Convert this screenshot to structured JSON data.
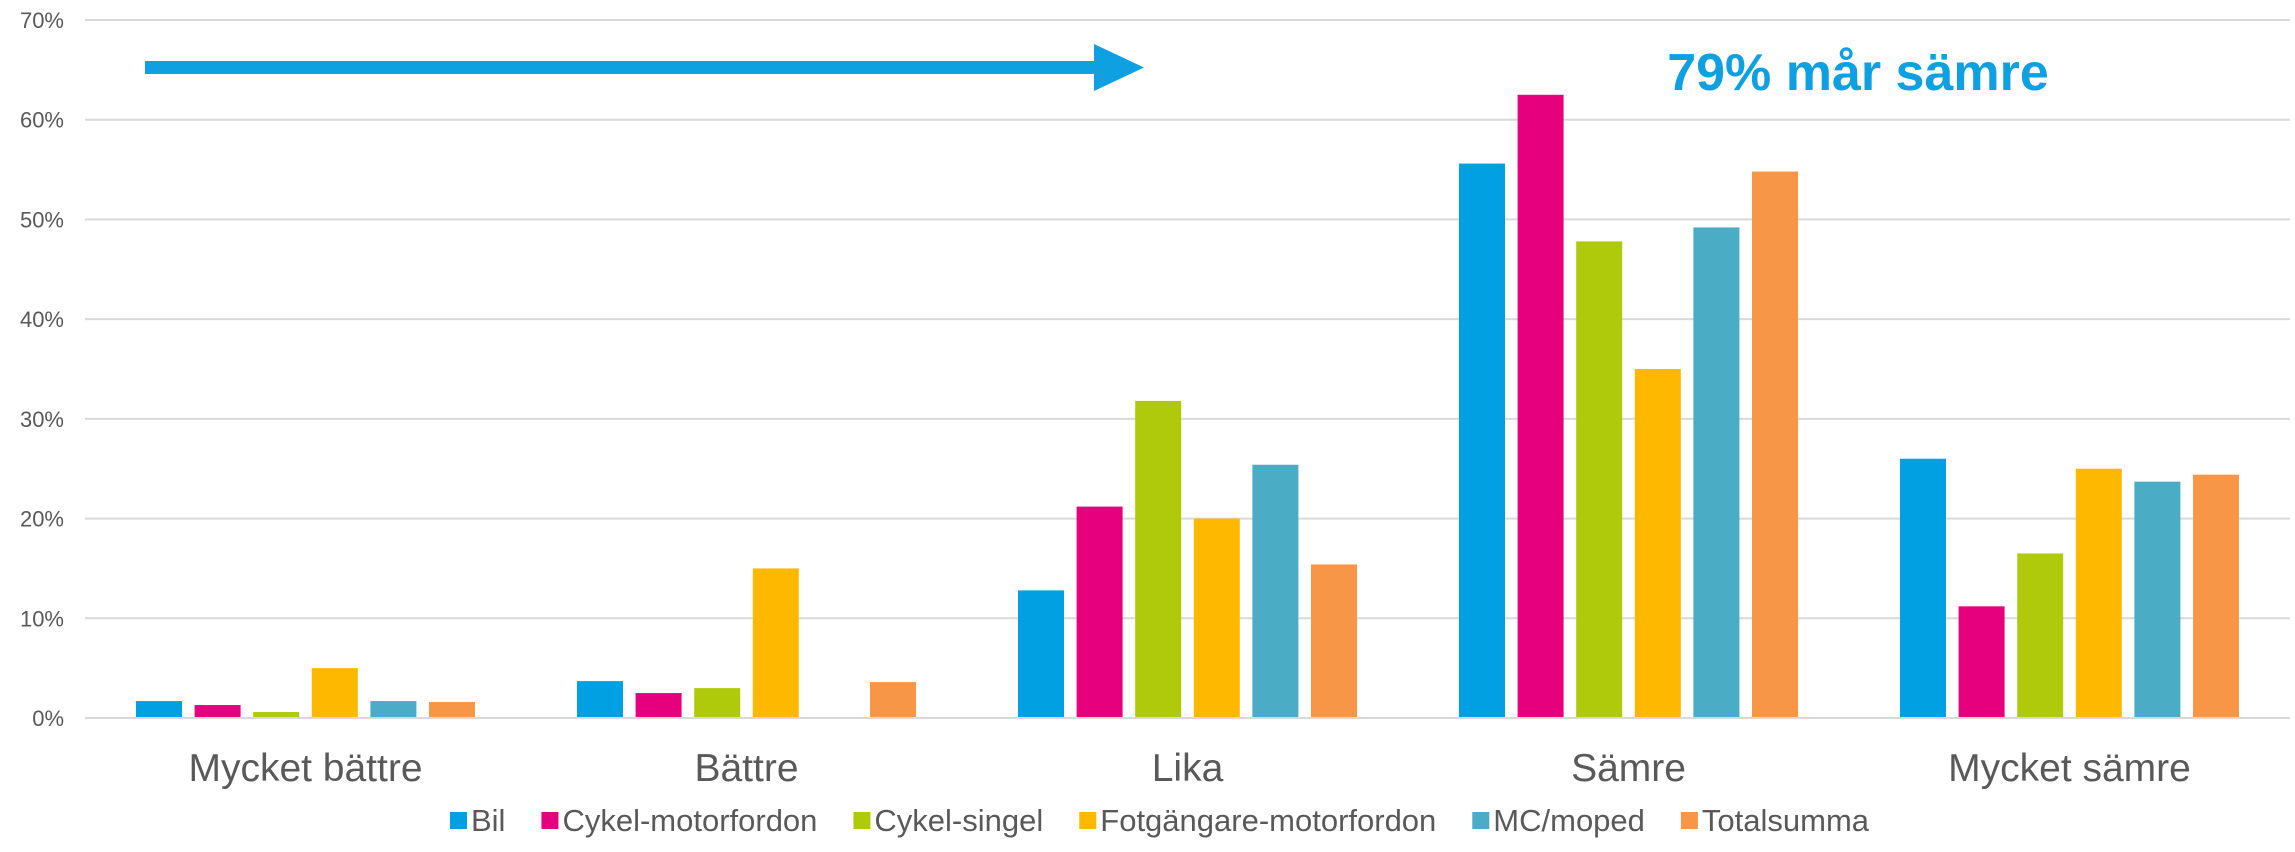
{
  "chart_data": {
    "type": "bar",
    "title": "",
    "xlabel": "",
    "ylabel": "",
    "ylim": [
      0,
      70
    ],
    "yticks": [
      0,
      10,
      20,
      30,
      40,
      50,
      60,
      70
    ],
    "ytick_labels": [
      "0%",
      "10%",
      "20%",
      "30%",
      "40%",
      "50%",
      "60%",
      "70%"
    ],
    "grid": true,
    "legend_position": "bottom",
    "categories": [
      "Mycket bättre",
      "Bättre",
      "Lika",
      "Sämre",
      "Mycket sämre"
    ],
    "series": [
      {
        "name": "Bil",
        "color": "#00A0E3",
        "values": [
          1.7,
          3.7,
          12.8,
          55.6,
          26.0
        ]
      },
      {
        "name": "Cykel-motorfordon",
        "color": "#E6007E",
        "values": [
          1.3,
          2.5,
          21.2,
          62.5,
          11.2
        ]
      },
      {
        "name": "Cykel-singel",
        "color": "#AFCA0B",
        "values": [
          0.6,
          3.0,
          31.8,
          47.8,
          16.5
        ]
      },
      {
        "name": "Fotgängare-motorfordon",
        "color": "#FFB800",
        "values": [
          5.0,
          15.0,
          20.0,
          35.0,
          25.0
        ]
      },
      {
        "name": "MC/moped",
        "color": "#4BACC6",
        "values": [
          1.7,
          0.0,
          25.4,
          49.2,
          23.7
        ]
      },
      {
        "name": "Totalsumma",
        "color": "#F79646",
        "values": [
          1.6,
          3.6,
          15.4,
          54.8,
          24.4
        ]
      }
    ],
    "annotation": {
      "text": "79% mår sämre",
      "color": "#0EA0E0",
      "arrow_color": "#0EA0E0"
    }
  }
}
